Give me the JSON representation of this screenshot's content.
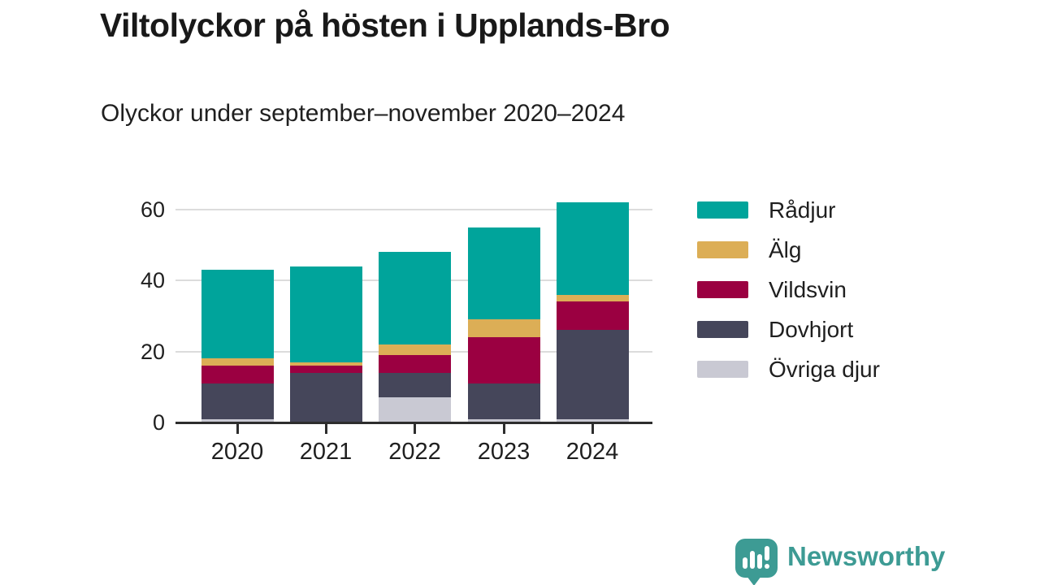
{
  "header": {
    "title": "Viltolyckor på hösten i Upplands-Bro",
    "subtitle": "Olyckor under september–november 2020–2024"
  },
  "chart_data": {
    "type": "bar",
    "stacked": true,
    "title": "Viltolyckor på hösten i Upplands-Bro",
    "subtitle": "Olyckor under september–november 2020–2024",
    "categories": [
      "2020",
      "2021",
      "2022",
      "2023",
      "2024"
    ],
    "series": [
      {
        "name": "Rådjur",
        "color": "#00a49b",
        "values": [
          25,
          27,
          26,
          26,
          26
        ]
      },
      {
        "name": "Älg",
        "color": "#dcae56",
        "values": [
          2,
          1,
          3,
          5,
          2
        ]
      },
      {
        "name": "Vildsvin",
        "color": "#9b0041",
        "values": [
          5,
          2,
          5,
          13,
          8
        ]
      },
      {
        "name": "Dovhjort",
        "color": "#45465a",
        "values": [
          10,
          14,
          7,
          10,
          25
        ]
      },
      {
        "name": "Övriga djur",
        "color": "#c9c9d3",
        "values": [
          1,
          0,
          7,
          1,
          1
        ]
      }
    ],
    "stack_order_bottom_to_top": [
      "Övriga djur",
      "Dovhjort",
      "Vildsvin",
      "Älg",
      "Rådjur"
    ],
    "totals": [
      43,
      44,
      48,
      55,
      62
    ],
    "xlabel": "",
    "ylabel": "",
    "y_ticks": [
      0,
      20,
      40,
      60
    ],
    "ylim": [
      0,
      62
    ],
    "grid": "horizontal",
    "legend_position": "right"
  },
  "legend": {
    "items": [
      {
        "label": "Rådjur",
        "color": "#00a49b"
      },
      {
        "label": "Älg",
        "color": "#dcae56"
      },
      {
        "label": "Vildsvin",
        "color": "#9b0041"
      },
      {
        "label": "Dovhjort",
        "color": "#45465a"
      },
      {
        "label": "Övriga djur",
        "color": "#c9c9d3"
      }
    ]
  },
  "footer": {
    "brand": "Newsworthy",
    "brand_color": "#3d9b94",
    "logo_icon": "bar-chart-speech-bubble"
  }
}
